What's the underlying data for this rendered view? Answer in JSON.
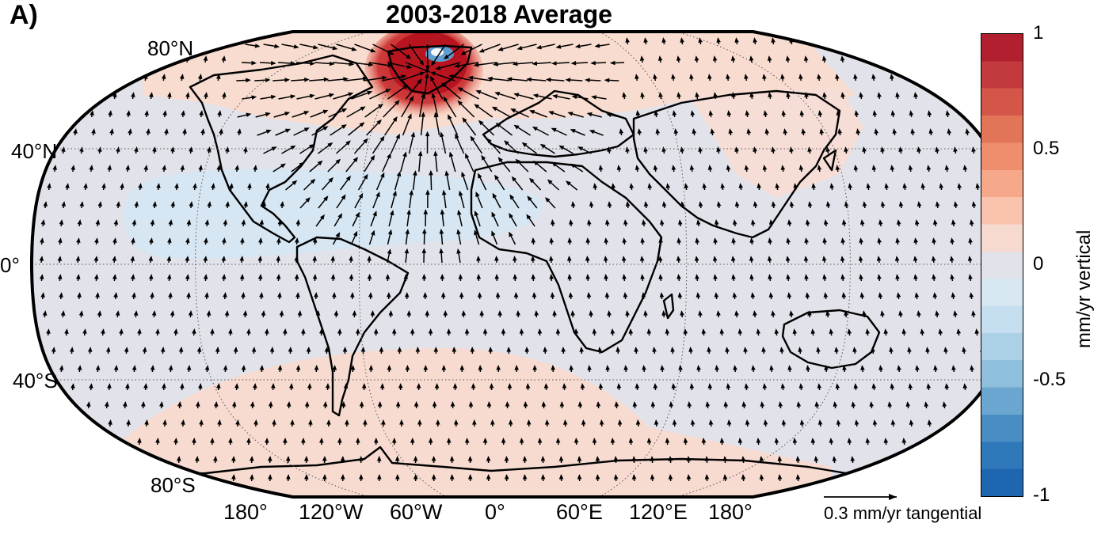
{
  "panel_label": "A)",
  "title": "2003-2018 Average",
  "latitude_labels": [
    "80°N",
    "40°N",
    "0°",
    "40°S",
    "80°S"
  ],
  "longitude_labels": [
    "180°",
    "120°W",
    "60°W",
    "0°",
    "60°E",
    "120°E",
    "180°"
  ],
  "colorbar": {
    "label": "mm/yr vertical",
    "ticks": [
      "1",
      "0.5",
      "0",
      "-0.5",
      "-1"
    ],
    "range": [
      -1,
      1
    ],
    "colors": [
      "#1f66b0",
      "#2f78b9",
      "#4a8dc3",
      "#6ba6d0",
      "#8ebfdd",
      "#acd0e6",
      "#c5dff0",
      "#d8e8f3",
      "#e2e2ea",
      "#f6d9cf",
      "#f9c3ad",
      "#f6a98a",
      "#ef8e6c",
      "#e27458",
      "#d45648",
      "#c33a3e",
      "#b2202f"
    ]
  },
  "reference_vector": {
    "label": "0.3 mm/yr tangential",
    "magnitude": 0.3
  },
  "colors": {
    "background_ocean": "#e2e2ea",
    "positive_pale": "#f6dcd2",
    "negative_pale": "#d9e8f3",
    "greenland_high": "#b8141f",
    "arrow": "#000000"
  }
}
